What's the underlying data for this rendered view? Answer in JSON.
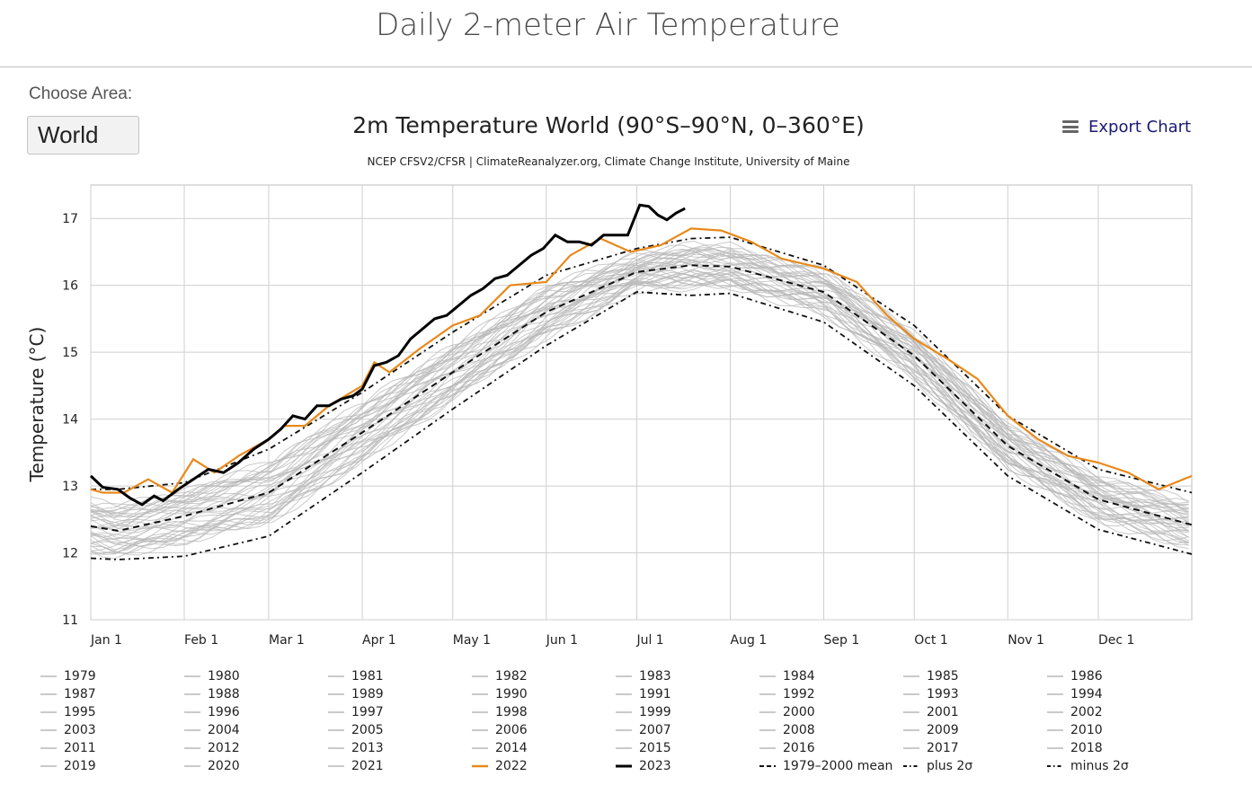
{
  "page": {
    "title": "Daily 2-meter Air Temperature"
  },
  "area": {
    "label": "Choose Area:",
    "value": "World"
  },
  "toolbar": {
    "export_label": "Export Chart",
    "export_icon": "menu-icon"
  },
  "colors": {
    "years": "#b8b8b8",
    "y2022": "#e8891a",
    "y2023": "#000000",
    "reference": "#111111"
  },
  "chart_data": {
    "type": "line",
    "title": "2m Temperature World (90°S–90°N, 0–360°E)",
    "subtitle": "NCEP CFSV2/CFSR | ClimateReanalyzer.org, Climate Change Institute, University of Maine",
    "xlabel": "",
    "ylabel": "Temperature (°C)",
    "ylim": [
      11,
      17.5
    ],
    "yticks": [
      11,
      12,
      13,
      14,
      15,
      16,
      17
    ],
    "xlim": [
      1,
      366
    ],
    "xticks": [
      {
        "day": 1,
        "label": "Jan 1"
      },
      {
        "day": 32,
        "label": "Feb 1"
      },
      {
        "day": 60,
        "label": "Mar 1"
      },
      {
        "day": 91,
        "label": "Apr 1"
      },
      {
        "day": 121,
        "label": "May 1"
      },
      {
        "day": 152,
        "label": "Jun 1"
      },
      {
        "day": 182,
        "label": "Jul 1"
      },
      {
        "day": 213,
        "label": "Aug 1"
      },
      {
        "day": 244,
        "label": "Sep 1"
      },
      {
        "day": 274,
        "label": "Oct 1"
      },
      {
        "day": 305,
        "label": "Nov 1"
      },
      {
        "day": 335,
        "label": "Dec 1"
      }
    ],
    "grid": true,
    "legend_position": "bottom",
    "reference": {
      "mean": {
        "name": "1979–2000 mean",
        "x": [
          1,
          10,
          32,
          60,
          91,
          121,
          152,
          182,
          200,
          213,
          244,
          274,
          305,
          335,
          366
        ],
        "y": [
          12.4,
          12.33,
          12.55,
          12.9,
          13.8,
          14.7,
          15.6,
          16.2,
          16.3,
          16.28,
          15.9,
          14.95,
          13.6,
          12.8,
          12.42
        ]
      },
      "plus2": {
        "name": "plus 2σ",
        "x": [
          1,
          10,
          32,
          60,
          91,
          121,
          152,
          182,
          200,
          213,
          244,
          274,
          305,
          335,
          366
        ],
        "y": [
          12.95,
          12.95,
          13.05,
          13.55,
          14.4,
          15.3,
          16.15,
          16.55,
          16.7,
          16.72,
          16.3,
          15.4,
          14.05,
          13.25,
          12.9
        ]
      },
      "minus2": {
        "name": "minus 2σ",
        "x": [
          1,
          10,
          32,
          60,
          91,
          121,
          152,
          182,
          200,
          213,
          244,
          274,
          305,
          335,
          366
        ],
        "y": [
          11.92,
          11.9,
          11.95,
          12.25,
          13.2,
          14.15,
          15.1,
          15.9,
          15.85,
          15.88,
          15.45,
          14.5,
          13.15,
          12.35,
          11.98
        ]
      }
    },
    "series_2022": {
      "name": "2022",
      "x": [
        1,
        5,
        12,
        20,
        28,
        35,
        42,
        50,
        60,
        65,
        72,
        80,
        91,
        95,
        100,
        110,
        121,
        130,
        140,
        152,
        160,
        170,
        180,
        190,
        200,
        210,
        220,
        230,
        244,
        255,
        265,
        274,
        285,
        295,
        305,
        315,
        325,
        335,
        345,
        355,
        366
      ],
      "y": [
        12.95,
        12.9,
        12.9,
        13.1,
        12.9,
        13.4,
        13.2,
        13.45,
        13.7,
        13.9,
        13.9,
        14.2,
        14.5,
        14.85,
        14.7,
        15.05,
        15.4,
        15.55,
        16.0,
        16.05,
        16.45,
        16.7,
        16.5,
        16.6,
        16.85,
        16.82,
        16.65,
        16.4,
        16.25,
        16.05,
        15.55,
        15.2,
        14.9,
        14.6,
        14.05,
        13.7,
        13.45,
        13.35,
        13.2,
        12.95,
        13.15
      ]
    },
    "series_2023": {
      "name": "2023",
      "x": [
        1,
        5,
        10,
        14,
        18,
        22,
        25,
        30,
        35,
        40,
        45,
        50,
        55,
        60,
        64,
        68,
        72,
        76,
        80,
        84,
        88,
        91,
        95,
        99,
        103,
        107,
        111,
        115,
        119,
        123,
        127,
        131,
        135,
        139,
        143,
        147,
        151,
        155,
        159,
        163,
        167,
        171,
        175,
        179,
        183,
        186,
        189,
        192,
        195,
        198
      ],
      "y": [
        13.15,
        12.98,
        12.95,
        12.82,
        12.72,
        12.85,
        12.78,
        12.95,
        13.1,
        13.25,
        13.2,
        13.35,
        13.55,
        13.7,
        13.85,
        14.05,
        14.0,
        14.2,
        14.2,
        14.3,
        14.35,
        14.45,
        14.8,
        14.85,
        14.95,
        15.2,
        15.35,
        15.5,
        15.55,
        15.7,
        15.85,
        15.95,
        16.1,
        16.15,
        16.3,
        16.45,
        16.55,
        16.75,
        16.65,
        16.65,
        16.6,
        16.75,
        16.75,
        16.75,
        17.2,
        17.18,
        17.05,
        16.98,
        17.08,
        17.15
      ]
    },
    "legend": [
      "1979",
      "1980",
      "1981",
      "1982",
      "1983",
      "1984",
      "1985",
      "1986",
      "1987",
      "1988",
      "1989",
      "1990",
      "1991",
      "1992",
      "1993",
      "1994",
      "1995",
      "1996",
      "1997",
      "1998",
      "1999",
      "2000",
      "2001",
      "2002",
      "2003",
      "2004",
      "2005",
      "2006",
      "2007",
      "2008",
      "2009",
      "2010",
      "2011",
      "2012",
      "2013",
      "2014",
      "2015",
      "2016",
      "2017",
      "2018",
      "2019",
      "2020",
      "2021",
      "2022",
      "2023",
      "1979–2000 mean",
      "plus 2σ",
      "minus 2σ"
    ]
  }
}
